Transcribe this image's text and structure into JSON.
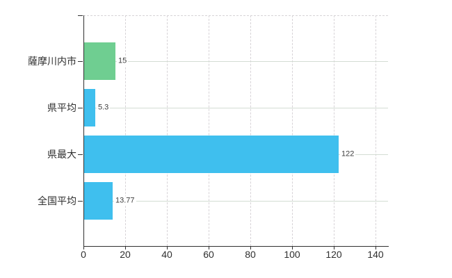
{
  "chart_data": {
    "type": "bar",
    "orientation": "horizontal",
    "title": "",
    "xlabel": "",
    "ylabel": "",
    "legend": "none",
    "categories": [
      "薩摩川内市",
      "県平均",
      "県最大",
      "全国平均"
    ],
    "values": [
      15,
      5.3,
      122,
      13.77
    ],
    "value_labels": [
      "15",
      "5.3",
      "122",
      "13.77"
    ],
    "bar_colors": [
      "#6fce91",
      "#3fbfee",
      "#3fbfee",
      "#3fbfee"
    ],
    "x_ticks": [
      0,
      20,
      40,
      60,
      80,
      100,
      120,
      140
    ],
    "x_tick_labels": [
      "0",
      "20",
      "40",
      "60",
      "80",
      "100",
      "120",
      "140"
    ],
    "xlim": [
      0,
      146
    ],
    "grid": {
      "vertical": "dashed",
      "horizontal": "solid",
      "top_border": "dashed"
    }
  },
  "colors": {
    "background": "#ffffff",
    "axis": "#2f2f2f",
    "text": "#2f2f2f",
    "value_text": "#3d3d3d",
    "grid_vertical": "#d7d3d7",
    "grid_horizontal": "#d3ddd3",
    "bar_green": "#6fce91",
    "bar_blue": "#3fbfee"
  }
}
